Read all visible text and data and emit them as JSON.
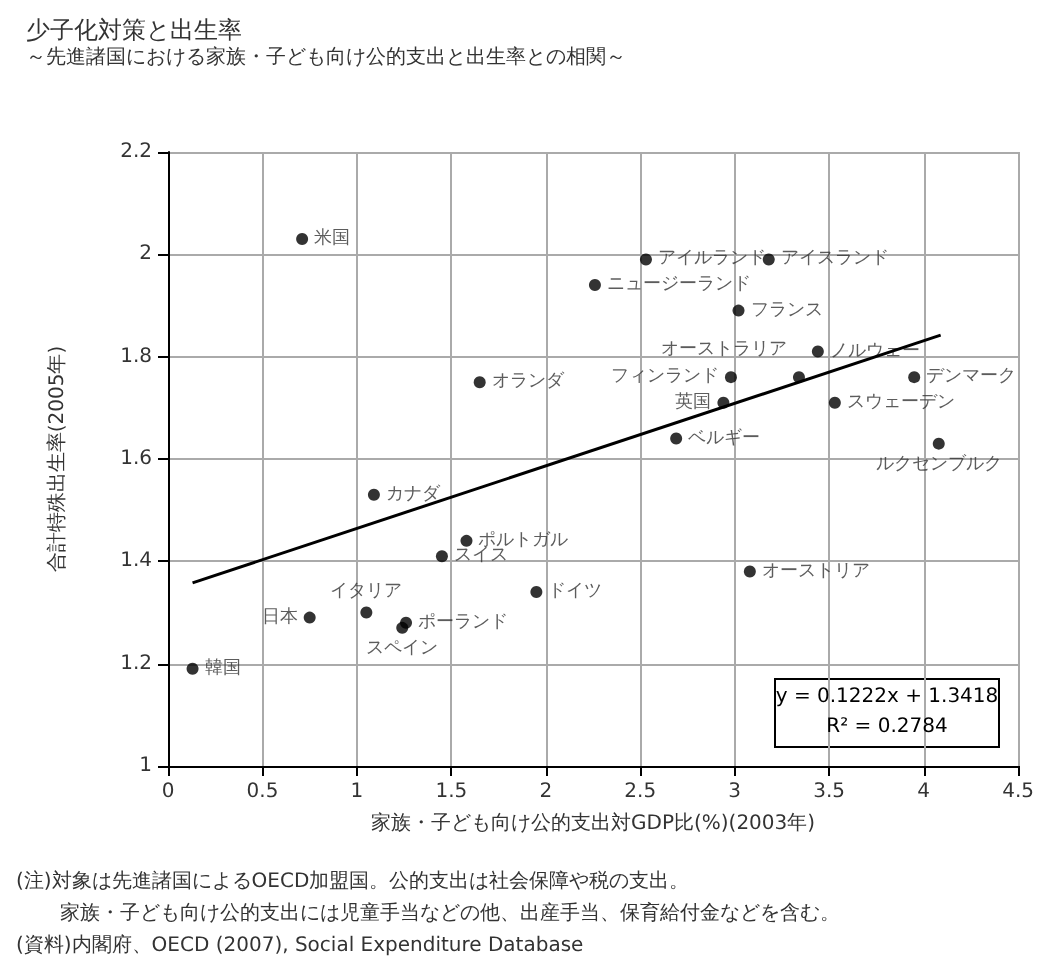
{
  "chart_data": {
    "type": "scatter",
    "title": "少子化対策と出生率",
    "subtitle": "～先進諸国における家族・子ども向け公的支出と出生率との相関～",
    "xlabel": "家族・子ども向け公的支出対GDP比(%)(2003年)",
    "ylabel": "合計特殊出生率(2005年)",
    "xlim": [
      0,
      4.5
    ],
    "xticks": [
      0,
      0.5,
      1,
      1.5,
      2,
      2.5,
      3,
      3.5,
      4,
      4.5
    ],
    "ylim": [
      1,
      2.2
    ],
    "yticks": [
      1,
      1.2,
      1.4,
      1.6,
      1.8,
      2,
      2.2
    ],
    "grid": true,
    "marker": "circle",
    "series": [
      {
        "type": "scatter",
        "color": "#000000",
        "x": [
          0.71,
          1.65,
          2.53,
          3.18,
          2.26,
          3.02,
          3.44,
          2.98,
          3.34,
          2.94,
          2.69,
          3.95,
          3.53,
          4.08,
          3.08,
          1.09,
          1.58,
          1.45,
          1.95,
          0.75,
          1.05,
          1.26,
          1.24,
          0.13
        ],
        "values": [
          2.03,
          1.75,
          1.99,
          1.99,
          1.94,
          1.89,
          1.81,
          1.76,
          1.76,
          1.71,
          1.64,
          1.76,
          1.71,
          1.63,
          1.38,
          1.53,
          1.44,
          1.41,
          1.34,
          1.29,
          1.3,
          1.28,
          1.27,
          1.19
        ],
        "value_labels": [
          "米国",
          "オランダ",
          "アイルランド",
          "アイスランド",
          "ニュージーランド",
          "フランス",
          "ノルウェー",
          "フィンランド",
          "オーストラリア",
          "英国",
          "ベルギー",
          "デンマーク",
          "スウェーデン",
          "ルクセンブルク",
          "オーストリア",
          "カナダ",
          "ポルトガル",
          "スイス",
          "ドイツ",
          "日本",
          "イタリア",
          "ポーランド",
          "スペイン",
          "韓国"
        ]
      },
      {
        "type": "line",
        "color": "#000000",
        "marker": "none",
        "x": [
          0.13,
          4.09
        ],
        "values": [
          1.358,
          1.842
        ]
      }
    ],
    "annotations": [
      "y = 0.1222x + 1.3418",
      "R² = 0.2784",
      "(注)対象は先進諸国によるOECD加盟国。公的支出は社会保障や税の支出。",
      "家族・子ども向け公的支出には児童手当などの他、出産手当、保育給付金などを含む。",
      "(資料)内閣府、OECD (2007), Social Expenditure Database"
    ]
  }
}
